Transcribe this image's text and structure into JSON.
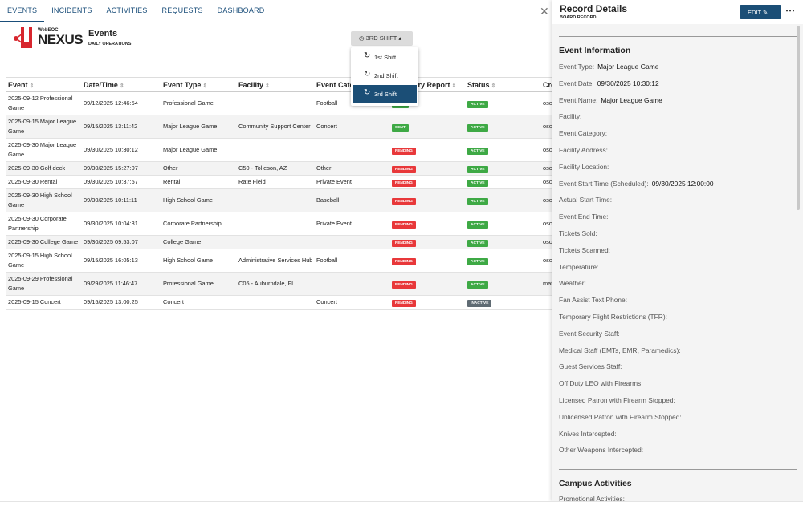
{
  "nav": {
    "tabs": [
      "EVENTS",
      "INCIDENTS",
      "ACTIVITIES",
      "REQUESTS",
      "DASHBOARD"
    ],
    "active": 0
  },
  "header": {
    "logo_small": "WebEOC",
    "logo_big": "NEXUS",
    "title": "Events",
    "subtitle": "DAILY OPERATIONS"
  },
  "shift": {
    "button": "3RD SHIFT",
    "options": [
      "1st Shift",
      "2nd Shift",
      "3rd Shift"
    ],
    "selected": 2
  },
  "table": {
    "columns": [
      "Event",
      "Date/Time",
      "Event Type",
      "Facility",
      "Event Category",
      "Summary Report",
      "Status",
      "Created By"
    ],
    "rows": [
      [
        "2025-09-12 Professional Game",
        "09/12/2025 12:46:54",
        "Professional Game",
        null,
        "Football",
        "SENT",
        "ACTIVE",
        "osc"
      ],
      [
        "2025-09-15 Major League Game",
        "09/15/2025 13:11:42",
        "Major League Game",
        "Community Support Center",
        "Concert",
        "SENT",
        "ACTIVE",
        "osc"
      ],
      [
        "2025-09-30 Major League Game",
        "09/30/2025 10:30:12",
        "Major League Game",
        null,
        null,
        "PENDING",
        "ACTIVE",
        "osc"
      ],
      [
        "2025-09-30 Golf deck",
        "09/30/2025 15:27:07",
        "Other",
        "C50 - Tolleson, AZ",
        "Other",
        "PENDING",
        "ACTIVE",
        "osc"
      ],
      [
        "2025-09-30 Rental",
        "09/30/2025 10:37:57",
        "Rental",
        "Rate Field",
        "Private Event",
        "PENDING",
        "ACTIVE",
        "osc"
      ],
      [
        "2025-09-30 High School Game",
        "09/30/2025 10:11:11",
        "High School Game",
        null,
        "Baseball",
        "PENDING",
        "ACTIVE",
        "osc"
      ],
      [
        "2025-09-30 Corporate Partnership",
        "09/30/2025 10:04:31",
        "Corporate Partnership",
        null,
        "Private Event",
        "PENDING",
        "ACTIVE",
        "osc"
      ],
      [
        "2025-09-30 College Game",
        "09/30/2025 09:53:07",
        "College Game",
        null,
        null,
        "PENDING",
        "ACTIVE",
        "osc"
      ],
      [
        "2025-09-15 High School Game",
        "09/15/2025 16:05:13",
        "High School Game",
        "Administrative Services Hub",
        "Football",
        "PENDING",
        "ACTIVE",
        "osc"
      ],
      [
        "2025-09-29 Professional Game",
        "09/29/2025 11:46:47",
        "Professional Game",
        "C05 - Auburndale, FL",
        null,
        "PENDING",
        "ACTIVE",
        "mat"
      ],
      [
        "2025-09-15 Concert",
        "09/15/2025 13:00:25",
        "Concert",
        null,
        "Concert",
        "PENDING",
        "INACTIVE",
        null
      ]
    ]
  },
  "panel": {
    "title": "Record Details",
    "subtitle": "BOARD RECORD",
    "edit": "EDIT",
    "section": "Event Information",
    "fields": [
      {
        "label": "Event Type:",
        "value": "Major League Game"
      },
      {
        "label": "Event Date:",
        "value": "09/30/2025 10:30:12"
      },
      {
        "label": "Event Name:",
        "value": "Major League Game"
      },
      {
        "label": "Facility:"
      },
      {
        "label": "Event Category:"
      },
      {
        "label": "Facility Address:"
      },
      {
        "label": "Facility Location:"
      },
      {
        "label": "Event Start Time (Scheduled):",
        "value": "09/30/2025 12:00:00"
      },
      {
        "label": "Actual Start Time:"
      },
      {
        "label": "Event End Time:"
      },
      {
        "label": "Tickets Sold:"
      },
      {
        "label": "Tickets Scanned:"
      },
      {
        "label": "Temperature:"
      },
      {
        "label": "Weather:"
      },
      {
        "label": "Fan Assist Text Phone:"
      },
      {
        "label": "Temporary Flight Restrictions (TFR):"
      },
      {
        "label": "Event Security Staff:"
      },
      {
        "label": "Medical Staff (EMTs, EMR, Paramedics):"
      },
      {
        "label": "Guest Services Staff:"
      },
      {
        "label": "Off Duty LEO with Firearms:"
      },
      {
        "label": "Licensed Patron with Firearm Stopped:"
      },
      {
        "label": "Unlicensed Patron with Firearm Stopped:"
      },
      {
        "label": "Knives Intercepted:"
      },
      {
        "label": "Other Weapons Intercepted:"
      }
    ],
    "section2": "Campus Activities",
    "section2_first": "Promotional Activities:"
  }
}
